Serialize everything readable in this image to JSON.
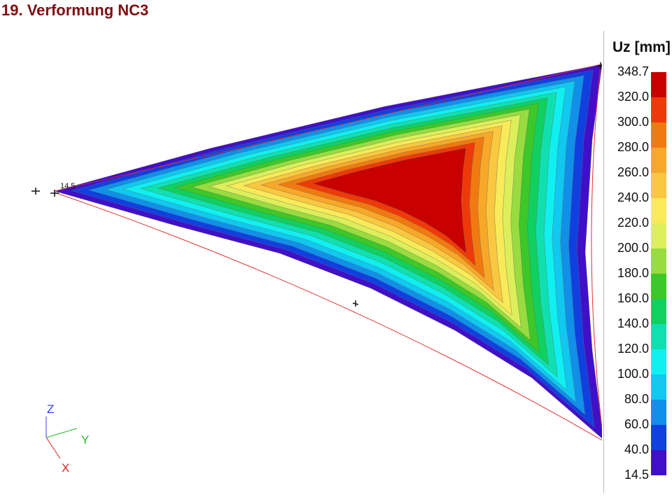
{
  "title": "19. Verformung NC3",
  "node_label": "14.5",
  "axes": {
    "z": "Z",
    "y": "Y",
    "x": "X",
    "colors": {
      "z": "#3040ff",
      "y": "#20c020",
      "x": "#e02020"
    }
  },
  "legend": {
    "title": "Uz [mm]",
    "labels": [
      "348.7",
      "320.0",
      "300.0",
      "280.0",
      "260.0",
      "240.0",
      "220.0",
      "200.0",
      "180.0",
      "160.0",
      "140.0",
      "120.0",
      "100.0",
      "80.0",
      "60.0",
      "40.0",
      "14.5"
    ],
    "colors": [
      "#c80000",
      "#ee3a08",
      "#f07a10",
      "#f8a828",
      "#f9c840",
      "#f8ea58",
      "#dcef5a",
      "#98dc40",
      "#3cc828",
      "#10d060",
      "#10e0b0",
      "#10f0f0",
      "#10c8f0",
      "#1090e8",
      "#1040e0",
      "#4010c8"
    ]
  }
}
